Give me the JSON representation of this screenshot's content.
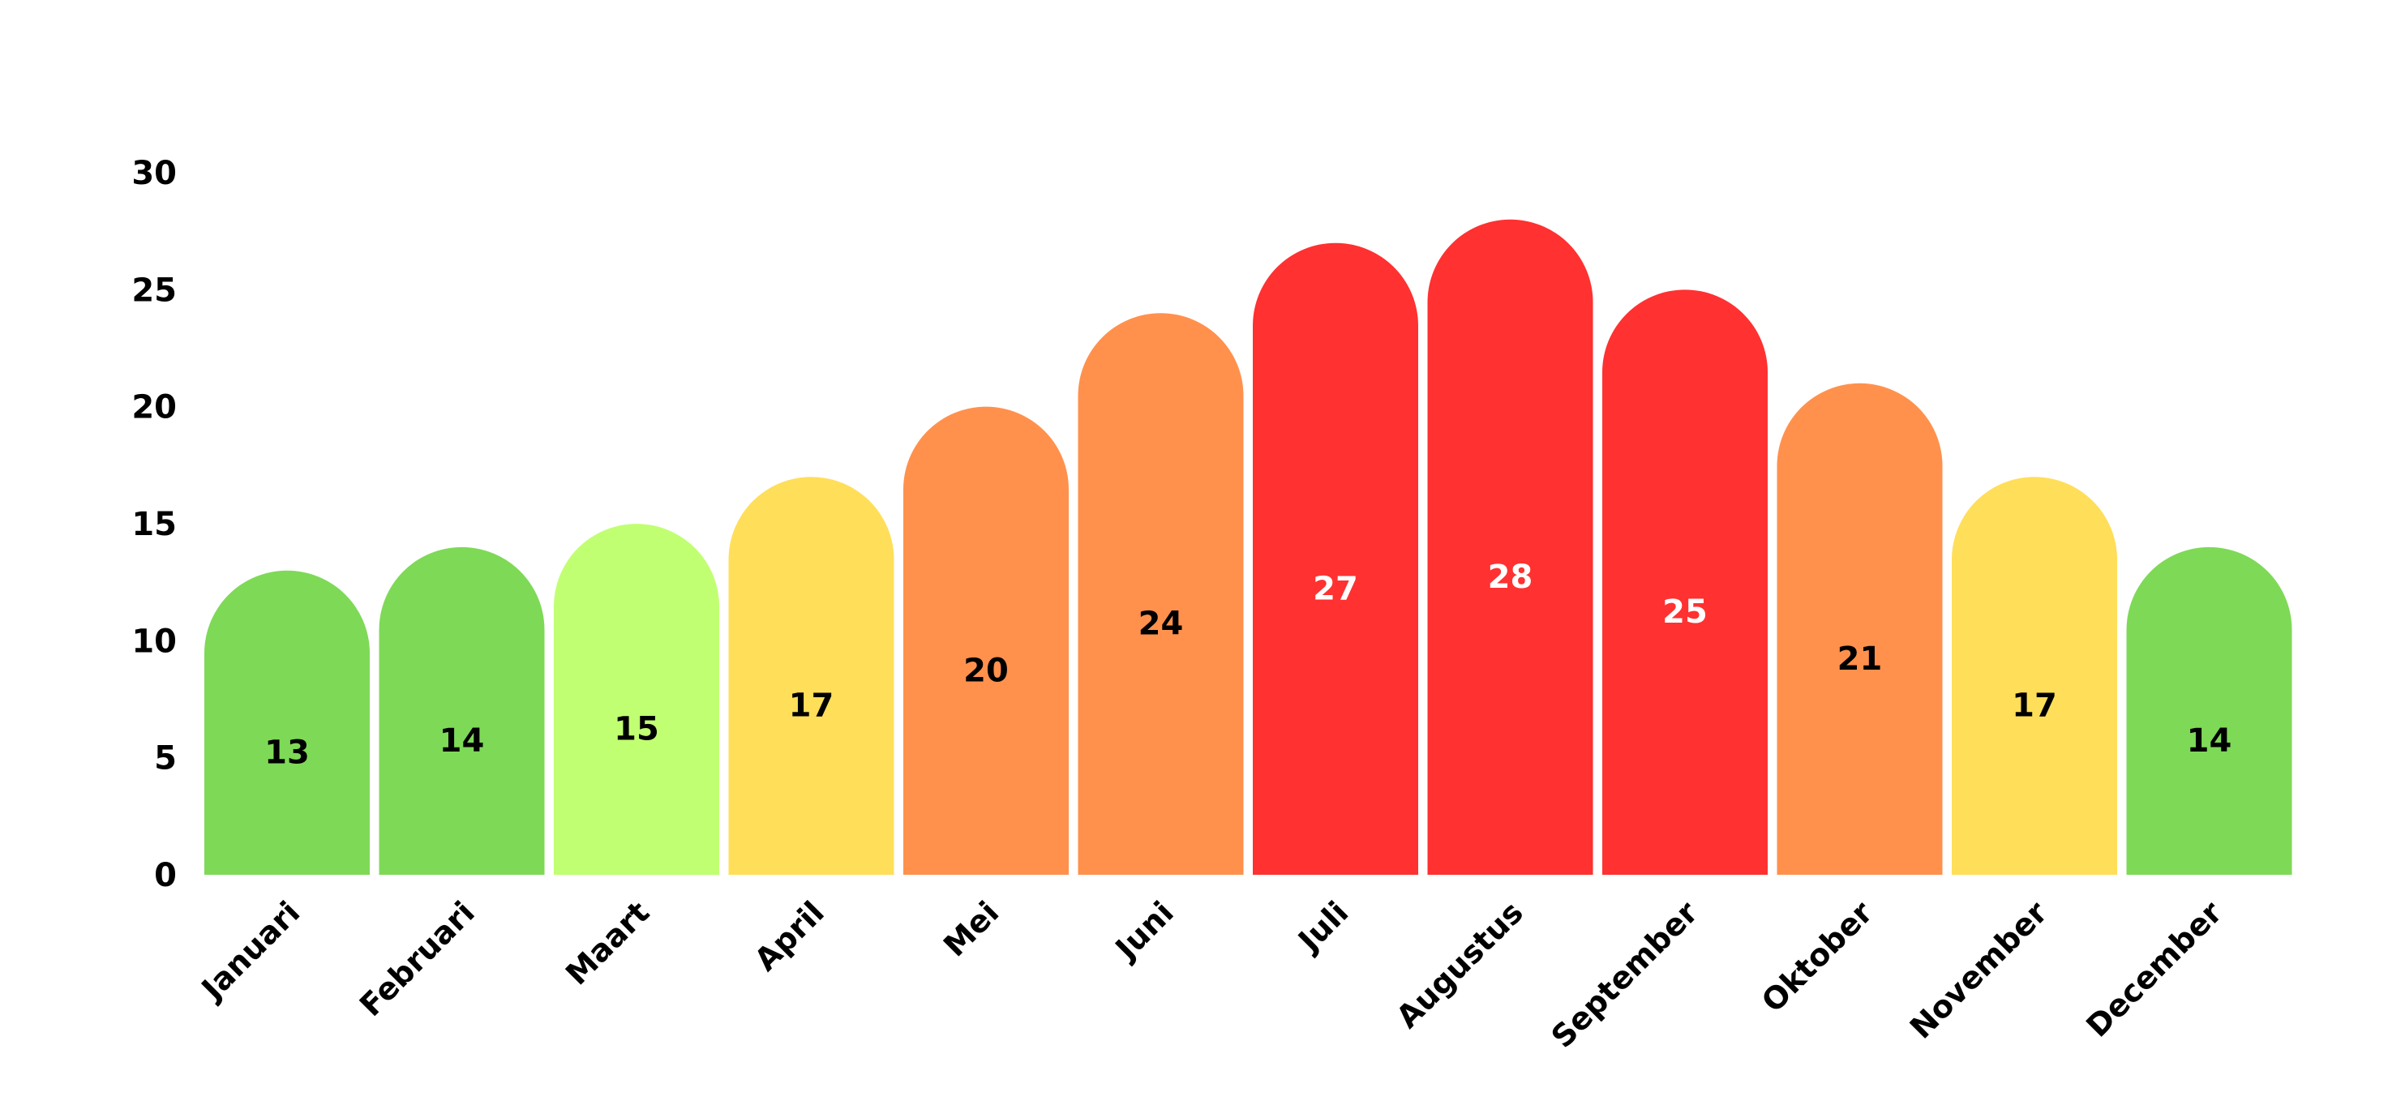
{
  "chart_data": {
    "type": "bar",
    "title": "",
    "xlabel": "",
    "ylabel": "",
    "categories": [
      "Januari",
      "Februari",
      "Maart",
      "April",
      "Mei",
      "Juni",
      "Juli",
      "Augustus",
      "September",
      "Oktober",
      "November",
      "December"
    ],
    "values": [
      13,
      14,
      15,
      17,
      20,
      24,
      27,
      28,
      25,
      21,
      17,
      14
    ],
    "data_labels": [
      "13",
      "14",
      "15",
      "17",
      "20",
      "24",
      "27",
      "28",
      "25",
      "21",
      "17",
      "14"
    ],
    "ylim": [
      0,
      30
    ],
    "y_ticks": [
      "0",
      "5",
      "10",
      "15",
      "20",
      "25",
      "30"
    ],
    "grid": false,
    "legend": "none",
    "bar_shape": "rounded-top",
    "bar_colors": [
      "#7ED957",
      "#7ED957",
      "#C1FF72",
      "#FFDE59",
      "#FF914D",
      "#FF914D",
      "#FF3131",
      "#FF3131",
      "#FF3131",
      "#FF914D",
      "#FFDE59",
      "#7ED957"
    ],
    "label_colors": [
      "#000000",
      "#000000",
      "#000000",
      "#000000",
      "#000000",
      "#000000",
      "#FFFFFF",
      "#FFFFFF",
      "#FFFFFF",
      "#000000",
      "#000000",
      "#000000"
    ]
  }
}
